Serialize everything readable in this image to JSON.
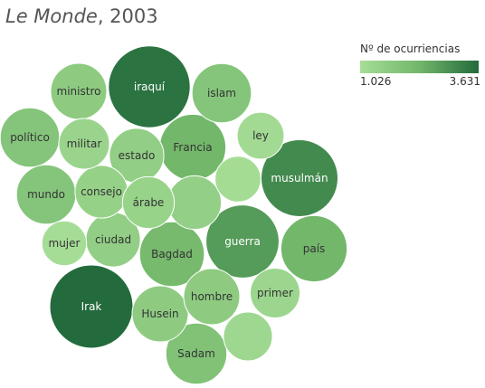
{
  "title": {
    "italic": "Le Monde",
    "rest": ", 2003"
  },
  "legend": {
    "title": "Nº de ocurriencias",
    "min_label": "1.026",
    "max_label": "3.631",
    "colors": [
      "#a7de97",
      "#72b66a",
      "#236b3c"
    ]
  },
  "chart_data": {
    "type": "packed-bubble",
    "title": "Le Monde, 2003",
    "color_legend": {
      "title": "Nº de ocurriencias",
      "min": 1026,
      "max": 3631
    },
    "bubbles": [
      {
        "label": "Irak",
        "value": 3631
      },
      {
        "label": "iraquí",
        "value": 3500
      },
      {
        "label": "musulmán",
        "value": 3100
      },
      {
        "label": "guerra",
        "value": 2800
      },
      {
        "label": "Francia",
        "value": 2300
      },
      {
        "label": "país",
        "value": 2300
      },
      {
        "label": "Bagdad",
        "value": 2200
      },
      {
        "label": "Sadam",
        "value": 1950
      },
      {
        "label": "islam",
        "value": 1850
      },
      {
        "label": "político",
        "value": 1850
      },
      {
        "label": "mundo",
        "value": 1850
      },
      {
        "label": "ministro",
        "value": 1650
      },
      {
        "label": "Husein",
        "value": 1650
      },
      {
        "label": "hombre",
        "value": 1650
      },
      {
        "label": "estado",
        "value": 1550
      },
      {
        "label": "ciudad",
        "value": 1550
      },
      {
        "label": "",
        "value": 1500
      },
      {
        "label": "consejo",
        "value": 1450
      },
      {
        "label": "árabe",
        "value": 1400
      },
      {
        "label": "militar",
        "value": 1350
      },
      {
        "label": "primer",
        "value": 1300
      },
      {
        "label": "",
        "value": 1250
      },
      {
        "label": "ley",
        "value": 1150
      },
      {
        "label": "",
        "value": 1100
      },
      {
        "label": "mujer",
        "value": 1050
      }
    ]
  }
}
